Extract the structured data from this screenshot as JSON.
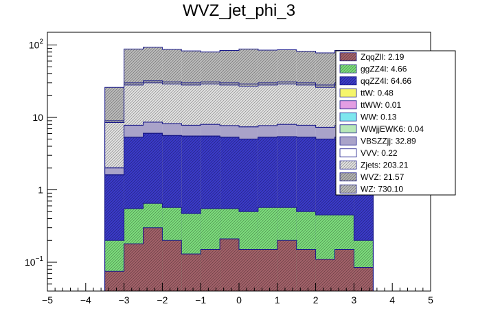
{
  "chart_data": {
    "type": "bar",
    "subtype": "stacked-histogram",
    "title": "WVZ_jet_phi_3",
    "xlabel": "",
    "ylabel": "",
    "xlim": [
      -5,
      5
    ],
    "ylim": [
      0.04,
      150
    ],
    "yscale": "log",
    "grid": false,
    "legend_position": "top-right",
    "x_ticks": [
      "−5",
      "−4",
      "−3",
      "−2",
      "−1",
      "0",
      "1",
      "2",
      "3",
      "4",
      "5"
    ],
    "y_ticks": [
      {
        "value": 0.1,
        "base": "10",
        "exp": "−1"
      },
      {
        "value": 1,
        "label": "1"
      },
      {
        "value": 10,
        "label": "10"
      },
      {
        "value": 100,
        "base": "10",
        "exp": "2"
      }
    ],
    "bin_edges": [
      -3.5,
      -3.0,
      -2.5,
      -2.0,
      -1.5,
      -1.0,
      -0.5,
      0.0,
      0.5,
      1.0,
      1.5,
      2.0,
      2.5,
      3.0,
      3.5
    ],
    "stack_totals": [
      {
        "name": "ZqqZll",
        "values": [
          0.075,
          0.18,
          0.3,
          0.2,
          0.13,
          0.15,
          0.21,
          0.15,
          0.15,
          0.2,
          0.15,
          0.11,
          0.15,
          0.085
        ]
      },
      {
        "name": "ggZZ4l",
        "values": [
          0.2,
          0.55,
          0.65,
          0.57,
          0.47,
          0.55,
          0.55,
          0.5,
          0.57,
          0.57,
          0.5,
          0.45,
          0.45,
          0.2
        ]
      },
      {
        "name": "qqZZ4l",
        "values": [
          1.6,
          5.3,
          6.0,
          5.6,
          5.5,
          5.5,
          5.3,
          5.0,
          5.3,
          5.4,
          5.3,
          5.0,
          5.3,
          2.4
        ]
      },
      {
        "name": "ttW",
        "values": [
          1.61,
          5.32,
          6.02,
          5.62,
          5.52,
          5.52,
          5.32,
          5.02,
          5.32,
          5.42,
          5.32,
          5.02,
          5.32,
          2.41
        ]
      },
      {
        "name": "ttWW",
        "values": [
          1.61,
          5.32,
          6.02,
          5.62,
          5.52,
          5.52,
          5.32,
          5.02,
          5.32,
          5.42,
          5.32,
          5.02,
          5.32,
          2.41
        ]
      },
      {
        "name": "WW",
        "values": [
          1.62,
          5.33,
          6.03,
          5.63,
          5.53,
          5.53,
          5.33,
          5.03,
          5.33,
          5.43,
          5.33,
          5.03,
          5.33,
          2.42
        ]
      },
      {
        "name": "WWjjEWK6",
        "values": [
          1.62,
          5.33,
          6.03,
          5.63,
          5.53,
          5.53,
          5.33,
          5.03,
          5.33,
          5.43,
          5.33,
          5.03,
          5.33,
          2.42
        ]
      },
      {
        "name": "VBSZZjj",
        "values": [
          2.0,
          7.8,
          8.6,
          8.2,
          7.8,
          8.0,
          7.7,
          7.4,
          7.7,
          8.0,
          7.8,
          7.3,
          7.7,
          3.0
        ]
      },
      {
        "name": "VVV",
        "values": [
          2.02,
          7.82,
          8.62,
          8.22,
          7.82,
          8.02,
          7.72,
          7.42,
          7.72,
          8.02,
          7.82,
          7.32,
          7.72,
          3.02
        ]
      },
      {
        "name": "Zjets",
        "values": [
          8.5,
          28.0,
          30.0,
          29.0,
          28.0,
          29.0,
          28.0,
          27.0,
          28.0,
          29.0,
          28.0,
          26.0,
          28.0,
          9.0
        ]
      },
      {
        "name": "WVZ",
        "values": [
          9.0,
          30.0,
          32.0,
          31.0,
          30.0,
          31.0,
          30.0,
          29.0,
          30.0,
          31.0,
          30.0,
          28.0,
          30.0,
          9.6
        ]
      },
      {
        "name": "WZ",
        "values": [
          26.0,
          88.0,
          93.0,
          87.0,
          83.0,
          80.0,
          84.0,
          88.0,
          85.0,
          86.0,
          82.0,
          78.0,
          84.0,
          28.0
        ]
      }
    ],
    "legend": [
      {
        "label": "ZqqZll: 2.19",
        "color": "#a5636b",
        "hatch": true
      },
      {
        "label": "ggZZ4l: 4.66",
        "color": "#7ee07e",
        "hatch": true
      },
      {
        "label": "qqZZ4l: 64.66",
        "color": "#3b3bcc",
        "hatch": true
      },
      {
        "label": "ttW: 0.48",
        "color": "#f5f56a",
        "hatch": false
      },
      {
        "label": "ttWW: 0.01",
        "color": "#e39ee3",
        "hatch": false
      },
      {
        "label": "WW: 0.13",
        "color": "#7ee6ee",
        "hatch": false
      },
      {
        "label": "WWjjEWK6: 0.04",
        "color": "#b8e8b8",
        "hatch": false
      },
      {
        "label": "VBSZZjj: 32.89",
        "color": "#a9a3c9",
        "hatch": false
      },
      {
        "label": "VVV: 0.22",
        "color": "#ffffff",
        "hatch": false
      },
      {
        "label": "Zjets: 203.21",
        "color": "#e4e4e4",
        "hatch": true
      },
      {
        "label": "WVZ: 21.57",
        "color": "#b4b4b4",
        "hatch": true
      },
      {
        "label": "WZ: 730.10",
        "color": "#bdbdbd",
        "hatch": true
      }
    ]
  }
}
